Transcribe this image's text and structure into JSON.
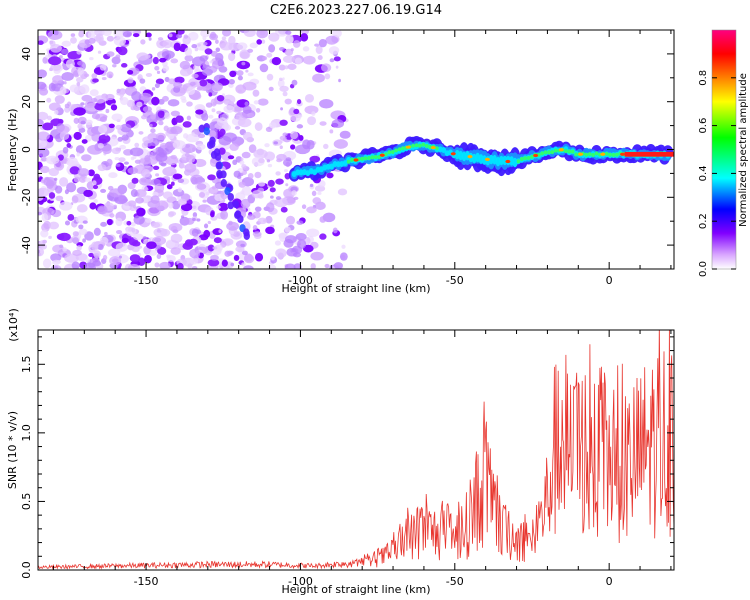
{
  "title": "C2E6.2023.227.06.19.G14",
  "chart_data": [
    {
      "type": "heatmap",
      "title": "C2E6.2023.227.06.19.G14",
      "xlabel": "Height of straight line (km)",
      "ylabel": "Frequency (Hz)",
      "xlim": [
        -185,
        21
      ],
      "ylim": [
        -50,
        50
      ],
      "x_ticks": [
        -150,
        -100,
        -50,
        0
      ],
      "x_tick_labels": [
        "-150",
        "-100",
        "-50",
        "0"
      ],
      "y_ticks": [
        -40,
        -20,
        0,
        20,
        40
      ],
      "y_tick_labels": [
        "-40",
        "-20",
        "0",
        "20",
        "40"
      ],
      "colorbar": {
        "label": "Normalized spectral amplitude",
        "range": [
          0,
          1
        ],
        "ticks": [
          0.0,
          0.2,
          0.4,
          0.6,
          0.8
        ],
        "tick_labels": [
          "0.0",
          "0.2",
          "0.4",
          "0.6",
          "0.8"
        ],
        "colors": [
          "#ffffff",
          "#d9a6ff",
          "#8000ff",
          "#0000ff",
          "#00ffff",
          "#00ff00",
          "#ffff00",
          "#ff8000",
          "#ff0000",
          "#ff0080"
        ]
      },
      "features": [
        {
          "name": "diagonal streak",
          "x": [
            -131,
            -126,
            -122,
            -118
          ],
          "y": [
            10,
            -5,
            -20,
            -35
          ]
        },
        {
          "name": "main ridge",
          "x": [
            -102,
            -95,
            -90,
            -85,
            -80,
            -75,
            -70,
            -65,
            -60,
            -55,
            -50,
            -45,
            -40,
            -35,
            -30,
            -25,
            -20,
            -15,
            -10,
            -5,
            0,
            5,
            10,
            15,
            20
          ],
          "y": [
            -10,
            -9,
            -7,
            -5,
            -4,
            -3,
            -1,
            1,
            2,
            0,
            -2,
            -3,
            -4,
            -5,
            -5,
            -3,
            -1,
            0,
            -2,
            -2,
            -2,
            -2,
            -2,
            -2,
            -2
          ],
          "amplitude": [
            0.3,
            0.35,
            0.45,
            0.5,
            0.55,
            0.6,
            0.6,
            0.65,
            0.6,
            0.5,
            0.45,
            0.45,
            0.45,
            0.45,
            0.5,
            0.5,
            0.55,
            0.6,
            0.65,
            0.7,
            0.8,
            0.85,
            0.9,
            0.95,
            0.95
          ]
        }
      ]
    },
    {
      "type": "line",
      "xlabel": "Height of straight line (km)",
      "ylabel": "SNR (10 * v/v)",
      "y_exponent_label": "(x10⁴)",
      "xlim": [
        -185,
        21
      ],
      "ylim": [
        0,
        1.75
      ],
      "x_ticks": [
        -150,
        -100,
        -50,
        0
      ],
      "x_tick_labels": [
        "-150",
        "-100",
        "-50",
        "0"
      ],
      "y_ticks": [
        0.0,
        0.5,
        1.0,
        1.5
      ],
      "y_tick_labels": [
        "0.0",
        "0.5",
        "1.0",
        "1.5"
      ],
      "color": "#e8362f",
      "series": [
        {
          "x": [
            -185,
            -160,
            -130,
            -110,
            -95,
            -85,
            -80,
            -75,
            -70,
            -65,
            -60,
            -55,
            -50,
            -45,
            -42,
            -40,
            -38,
            -35,
            -30,
            -25,
            -20,
            -18,
            -15,
            -12,
            -10,
            -8,
            -5,
            -2,
            0,
            5,
            10,
            15,
            20
          ],
          "y": [
            0.02,
            0.03,
            0.04,
            0.04,
            0.03,
            0.05,
            0.08,
            0.12,
            0.2,
            0.35,
            0.45,
            0.4,
            0.35,
            0.55,
            0.9,
            1.0,
            0.7,
            0.45,
            0.35,
            0.3,
            0.8,
            1.3,
            1.5,
            1.2,
            1.35,
            1.4,
            1.1,
            1.25,
            1.2,
            1.1,
            1.3,
            1.45,
            1.5
          ]
        }
      ]
    }
  ]
}
